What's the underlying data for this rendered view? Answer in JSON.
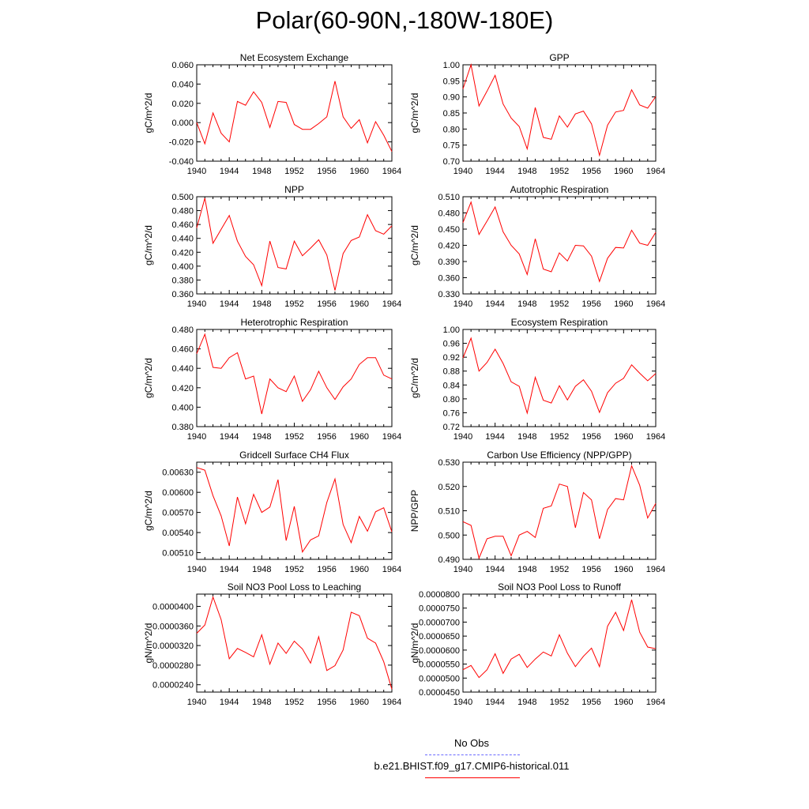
{
  "page": {
    "title": "Polar(60-90N,-180W-180E)"
  },
  "legend": {
    "obs_label": "No Obs",
    "obs_color": "#6a6aff",
    "case_label": "b.e21.BHIST.f09_g17.CMIP6-historical.011",
    "case_color": "#ff0000"
  },
  "chart_data": [
    {
      "type": "line",
      "title": "Net Ecosystem Exchange",
      "ylabel": "gC/m^2/d",
      "xlim": [
        1940,
        1964
      ],
      "ylim": [
        -0.04,
        0.06
      ],
      "xticks": [
        "1940",
        "1944",
        "1948",
        "1952",
        "1956",
        "1960",
        "1964"
      ],
      "yticks": [
        "-0.040",
        "-0.020",
        "0.000",
        "0.020",
        "0.040",
        "0.060"
      ],
      "x": [
        1940,
        1941,
        1942,
        1943,
        1944,
        1945,
        1946,
        1947,
        1948,
        1949,
        1950,
        1951,
        1952,
        1953,
        1954,
        1955,
        1956,
        1957,
        1958,
        1959,
        1960,
        1961,
        1962,
        1963,
        1964
      ],
      "series": [
        {
          "color": "#ff0000",
          "values": [
            0.0,
            -0.022,
            0.01,
            -0.011,
            -0.02,
            0.022,
            0.018,
            0.032,
            0.021,
            -0.005,
            0.022,
            0.021,
            -0.002,
            -0.007,
            -0.007,
            -0.001,
            0.006,
            0.043,
            0.006,
            -0.006,
            0.003,
            -0.021,
            0.001,
            -0.013,
            -0.03
          ]
        }
      ]
    },
    {
      "type": "line",
      "title": "GPP",
      "ylabel": "gC/m^2/d",
      "xlim": [
        1940,
        1964
      ],
      "ylim": [
        0.7,
        1.0
      ],
      "xticks": [
        "1940",
        "1944",
        "1948",
        "1952",
        "1956",
        "1960",
        "1964"
      ],
      "yticks": [
        "0.70",
        "0.75",
        "0.80",
        "0.85",
        "0.90",
        "0.95",
        "1.00"
      ],
      "x": [
        1940,
        1941,
        1942,
        1943,
        1944,
        1945,
        1946,
        1947,
        1948,
        1949,
        1950,
        1951,
        1952,
        1953,
        1954,
        1955,
        1956,
        1957,
        1958,
        1959,
        1960,
        1961,
        1962,
        1963,
        1964
      ],
      "series": [
        {
          "color": "#ff0000",
          "values": [
            0.925,
            1.0,
            0.872,
            0.918,
            0.967,
            0.878,
            0.834,
            0.808,
            0.738,
            0.867,
            0.774,
            0.768,
            0.841,
            0.806,
            0.847,
            0.856,
            0.816,
            0.718,
            0.812,
            0.853,
            0.858,
            0.922,
            0.875,
            0.865,
            0.901
          ]
        }
      ]
    },
    {
      "type": "line",
      "title": "NPP",
      "ylabel": "gC/m^2/d",
      "xlim": [
        1940,
        1964
      ],
      "ylim": [
        0.36,
        0.5
      ],
      "xticks": [
        "1940",
        "1944",
        "1948",
        "1952",
        "1956",
        "1960",
        "1964"
      ],
      "yticks": [
        "0.360",
        "0.380",
        "0.400",
        "0.420",
        "0.440",
        "0.460",
        "0.480",
        "0.500"
      ],
      "x": [
        1940,
        1941,
        1942,
        1943,
        1944,
        1945,
        1946,
        1947,
        1948,
        1949,
        1950,
        1951,
        1952,
        1953,
        1954,
        1955,
        1956,
        1957,
        1958,
        1959,
        1960,
        1961,
        1962,
        1963,
        1964
      ],
      "series": [
        {
          "color": "#ff0000",
          "values": [
            0.455,
            0.498,
            0.433,
            0.453,
            0.473,
            0.436,
            0.414,
            0.402,
            0.372,
            0.436,
            0.398,
            0.396,
            0.436,
            0.415,
            0.426,
            0.438,
            0.416,
            0.365,
            0.418,
            0.437,
            0.442,
            0.474,
            0.451,
            0.446,
            0.458
          ]
        }
      ]
    },
    {
      "type": "line",
      "title": "Autotrophic Respiration",
      "ylabel": "gC/m^2/d",
      "xlim": [
        1940,
        1964
      ],
      "ylim": [
        0.33,
        0.51
      ],
      "xticks": [
        "1940",
        "1944",
        "1948",
        "1952",
        "1956",
        "1960",
        "1964"
      ],
      "yticks": [
        "0.330",
        "0.360",
        "0.390",
        "0.420",
        "0.450",
        "0.480",
        "0.510"
      ],
      "x": [
        1940,
        1941,
        1942,
        1943,
        1944,
        1945,
        1946,
        1947,
        1948,
        1949,
        1950,
        1951,
        1952,
        1953,
        1954,
        1955,
        1956,
        1957,
        1958,
        1959,
        1960,
        1961,
        1962,
        1963,
        1964
      ],
      "series": [
        {
          "color": "#ff0000",
          "values": [
            0.462,
            0.5,
            0.44,
            0.465,
            0.491,
            0.445,
            0.42,
            0.404,
            0.366,
            0.432,
            0.376,
            0.371,
            0.406,
            0.391,
            0.42,
            0.419,
            0.4,
            0.353,
            0.396,
            0.416,
            0.415,
            0.448,
            0.424,
            0.42,
            0.444
          ]
        }
      ]
    },
    {
      "type": "line",
      "title": "Heterotrophic Respiration",
      "ylabel": "gC/m^2/d",
      "xlim": [
        1940,
        1964
      ],
      "ylim": [
        0.38,
        0.48
      ],
      "xticks": [
        "1940",
        "1944",
        "1948",
        "1952",
        "1956",
        "1960",
        "1964"
      ],
      "yticks": [
        "0.380",
        "0.400",
        "0.420",
        "0.440",
        "0.460",
        "0.480"
      ],
      "x": [
        1940,
        1941,
        1942,
        1943,
        1944,
        1945,
        1946,
        1947,
        1948,
        1949,
        1950,
        1951,
        1952,
        1953,
        1954,
        1955,
        1956,
        1957,
        1958,
        1959,
        1960,
        1961,
        1962,
        1963,
        1964
      ],
      "series": [
        {
          "color": "#ff0000",
          "values": [
            0.455,
            0.475,
            0.441,
            0.44,
            0.451,
            0.456,
            0.429,
            0.432,
            0.393,
            0.429,
            0.42,
            0.416,
            0.432,
            0.406,
            0.418,
            0.437,
            0.42,
            0.408,
            0.421,
            0.429,
            0.444,
            0.451,
            0.451,
            0.433,
            0.429
          ]
        }
      ]
    },
    {
      "type": "line",
      "title": "Ecosystem Respiration",
      "ylabel": "gC/m^2/d",
      "xlim": [
        1940,
        1964
      ],
      "ylim": [
        0.72,
        1.0
      ],
      "xticks": [
        "1940",
        "1944",
        "1948",
        "1952",
        "1956",
        "1960",
        "1964"
      ],
      "yticks": [
        "0.72",
        "0.76",
        "0.80",
        "0.84",
        "0.88",
        "0.92",
        "0.96",
        "1.00"
      ],
      "x": [
        1940,
        1941,
        1942,
        1943,
        1944,
        1945,
        1946,
        1947,
        1948,
        1949,
        1950,
        1951,
        1952,
        1953,
        1954,
        1955,
        1956,
        1957,
        1958,
        1959,
        1960,
        1961,
        1962,
        1963,
        1964
      ],
      "series": [
        {
          "color": "#ff0000",
          "values": [
            0.918,
            0.975,
            0.88,
            0.905,
            0.943,
            0.902,
            0.849,
            0.836,
            0.759,
            0.862,
            0.796,
            0.788,
            0.838,
            0.797,
            0.836,
            0.855,
            0.822,
            0.761,
            0.818,
            0.845,
            0.859,
            0.898,
            0.874,
            0.852,
            0.873
          ]
        }
      ]
    },
    {
      "type": "line",
      "title": "Gridcell Surface CH4 Flux",
      "ylabel": "gC/m^2/d",
      "xlim": [
        1940,
        1964
      ],
      "ylim": [
        0.005,
        0.00645
      ],
      "xticks": [
        "1940",
        "1944",
        "1948",
        "1952",
        "1956",
        "1960",
        "1964"
      ],
      "yticks": [
        "0.00510",
        "0.00540",
        "0.00570",
        "0.00600",
        "0.00630"
      ],
      "x": [
        1940,
        1941,
        1942,
        1943,
        1944,
        1945,
        1946,
        1947,
        1948,
        1949,
        1950,
        1951,
        1952,
        1953,
        1954,
        1955,
        1956,
        1957,
        1958,
        1959,
        1960,
        1961,
        1962,
        1963,
        1964
      ],
      "series": [
        {
          "color": "#ff0000",
          "values": [
            0.00637,
            0.00633,
            0.00595,
            0.00565,
            0.0052,
            0.00593,
            0.00553,
            0.00597,
            0.0057,
            0.00578,
            0.00619,
            0.00528,
            0.00579,
            0.00511,
            0.00529,
            0.00535,
            0.00585,
            0.0062,
            0.00552,
            0.00525,
            0.00564,
            0.00542,
            0.00571,
            0.00577,
            0.00541
          ]
        }
      ]
    },
    {
      "type": "line",
      "title": "Carbon Use Efficiency (NPP/GPP)",
      "ylabel": "NPP/GPP",
      "xlim": [
        1940,
        1964
      ],
      "ylim": [
        0.49,
        0.53
      ],
      "xticks": [
        "1940",
        "1944",
        "1948",
        "1952",
        "1956",
        "1960",
        "1964"
      ],
      "yticks": [
        "0.490",
        "0.500",
        "0.510",
        "0.520",
        "0.530"
      ],
      "x": [
        1940,
        1941,
        1942,
        1943,
        1944,
        1945,
        1946,
        1947,
        1948,
        1949,
        1950,
        1951,
        1952,
        1953,
        1954,
        1955,
        1956,
        1957,
        1958,
        1959,
        1960,
        1961,
        1962,
        1963,
        1964
      ],
      "series": [
        {
          "color": "#ff0000",
          "values": [
            0.5055,
            0.504,
            0.4905,
            0.4985,
            0.4995,
            0.4995,
            0.4915,
            0.5,
            0.5015,
            0.499,
            0.511,
            0.512,
            0.521,
            0.52,
            0.503,
            0.5175,
            0.5145,
            0.4985,
            0.5105,
            0.515,
            0.5145,
            0.5285,
            0.5205,
            0.507,
            0.513
          ]
        }
      ]
    },
    {
      "type": "line",
      "title": "Soil NO3 Pool Loss to Leaching",
      "ylabel": "gN/m^2/d",
      "xlim": [
        1940,
        1964
      ],
      "ylim": [
        2.25e-05,
        4.25e-05
      ],
      "xticks": [
        "1940",
        "1944",
        "1948",
        "1952",
        "1956",
        "1960",
        "1964"
      ],
      "yticks": [
        "0.0000240",
        "0.0000280",
        "0.0000320",
        "0.0000360",
        "0.0000400"
      ],
      "x": [
        1940,
        1941,
        1942,
        1943,
        1944,
        1945,
        1946,
        1947,
        1948,
        1949,
        1950,
        1951,
        1952,
        1953,
        1954,
        1955,
        1956,
        1957,
        1958,
        1959,
        1960,
        1961,
        1962,
        1963,
        1964
      ],
      "series": [
        {
          "color": "#ff0000",
          "values": [
            3.45e-05,
            3.62e-05,
            4.19e-05,
            3.73e-05,
            2.93e-05,
            3.14e-05,
            3.06e-05,
            2.97e-05,
            3.42e-05,
            2.82e-05,
            3.25e-05,
            3.04e-05,
            3.29e-05,
            3.13e-05,
            2.84e-05,
            3.38e-05,
            2.69e-05,
            2.79e-05,
            3.11e-05,
            3.88e-05,
            3.81e-05,
            3.35e-05,
            3.25e-05,
            2.87e-05,
            2.31e-05
          ]
        }
      ]
    },
    {
      "type": "line",
      "title": "Soil NO3 Pool Loss to Runoff",
      "ylabel": "gN/m^2/d",
      "xlim": [
        1940,
        1964
      ],
      "ylim": [
        4.5e-05,
        8e-05
      ],
      "xticks": [
        "1940",
        "1944",
        "1948",
        "1952",
        "1956",
        "1960",
        "1964"
      ],
      "yticks": [
        "0.0000450",
        "0.0000500",
        "0.0000550",
        "0.0000600",
        "0.0000650",
        "0.0000700",
        "0.0000750",
        "0.0000800"
      ],
      "x": [
        1940,
        1941,
        1942,
        1943,
        1944,
        1945,
        1946,
        1947,
        1948,
        1949,
        1950,
        1951,
        1952,
        1953,
        1954,
        1955,
        1956,
        1957,
        1958,
        1959,
        1960,
        1961,
        1962,
        1963,
        1964
      ],
      "series": [
        {
          "color": "#ff0000",
          "values": [
            5.3e-05,
            5.45e-05,
            5.02e-05,
            5.3e-05,
            5.87e-05,
            5.17e-05,
            5.68e-05,
            5.85e-05,
            5.38e-05,
            5.68e-05,
            5.93e-05,
            5.79e-05,
            6.55e-05,
            5.89e-05,
            5.41e-05,
            5.78e-05,
            6.07e-05,
            5.41e-05,
            6.85e-05,
            7.35e-05,
            6.7e-05,
            7.8e-05,
            6.64e-05,
            6.11e-05,
            6.05e-05
          ]
        }
      ]
    }
  ]
}
